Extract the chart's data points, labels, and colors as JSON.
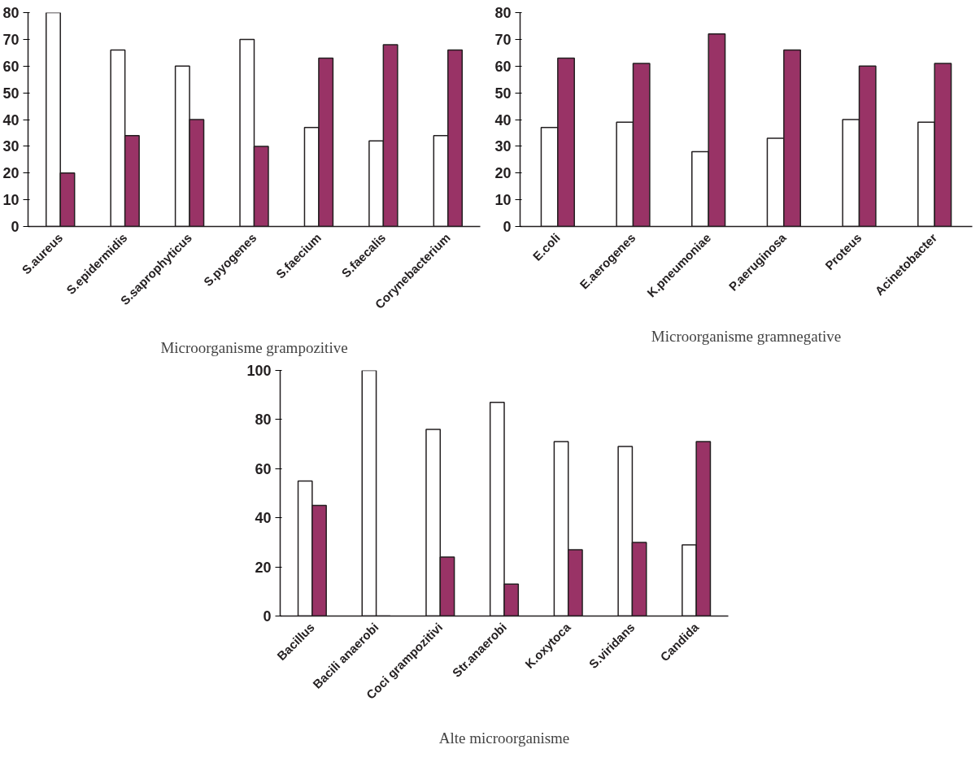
{
  "chart_data": [
    {
      "type": "bar",
      "xlabel": "Microorganisme grampozitive",
      "categories": [
        "S.aureus",
        "S.epidermidis",
        "S.saprophyticus",
        "S.pyogenes",
        "S.faecium",
        "S.faecalis",
        "Corynebacterium"
      ],
      "series": [
        {
          "color": "#ffffff",
          "values": [
            80,
            66,
            60,
            70,
            37,
            32,
            34
          ]
        },
        {
          "color": "#993366",
          "values": [
            20,
            34,
            40,
            30,
            63,
            68,
            66
          ]
        }
      ],
      "ylim": [
        0,
        80
      ],
      "yticks": [
        0,
        10,
        20,
        30,
        40,
        50,
        60,
        70,
        80
      ],
      "grid": false
    },
    {
      "type": "bar",
      "xlabel": "Microorganisme gramnegative",
      "categories": [
        "E.coli",
        "E.aerogenes",
        "K.pneumoniae",
        "P.aeruginosa",
        "Proteus",
        "Acinetobacter"
      ],
      "series": [
        {
          "color": "#ffffff",
          "values": [
            37,
            39,
            28,
            33,
            40,
            39
          ]
        },
        {
          "color": "#993366",
          "values": [
            63,
            61,
            72,
            66,
            60,
            61
          ]
        }
      ],
      "ylim": [
        0,
        80
      ],
      "yticks": [
        0,
        10,
        20,
        30,
        40,
        50,
        60,
        70,
        80
      ],
      "grid": false
    },
    {
      "type": "bar",
      "xlabel": "Alte microorganisme",
      "categories": [
        "Bacillus",
        "Bacili anaerobi",
        "Coci grampozitivi",
        "Str.anaerobi",
        "K.oxytoca",
        "S.viridans",
        "Candida"
      ],
      "series": [
        {
          "color": "#ffffff",
          "values": [
            55,
            100,
            76,
            87,
            71,
            69,
            29
          ]
        },
        {
          "color": "#993366",
          "values": [
            45,
            0,
            24,
            13,
            27,
            30,
            71
          ]
        }
      ],
      "ylim": [
        0,
        100
      ],
      "yticks": [
        0,
        20,
        40,
        60,
        80,
        100
      ],
      "grid": false
    }
  ]
}
